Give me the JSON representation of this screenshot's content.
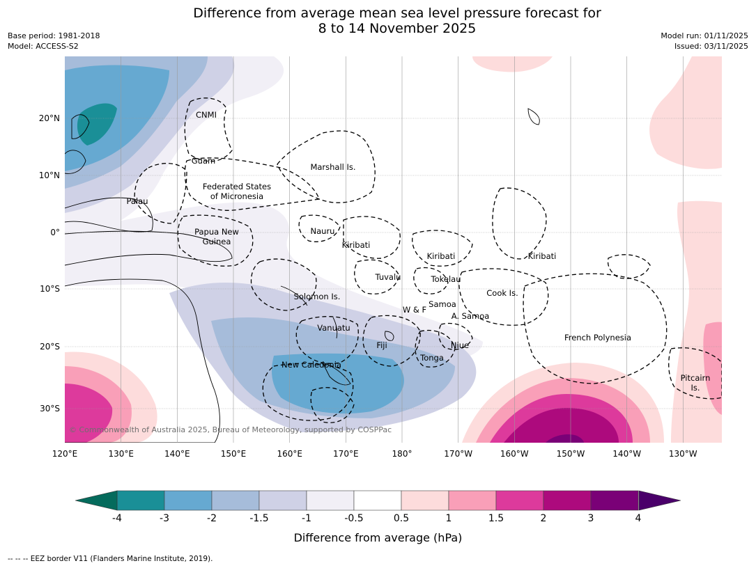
{
  "title_line1": "Difference from average mean sea level pressure forecast for",
  "title_line2": "8 to 14 November 2025",
  "meta_left": {
    "base_period": "Base period: 1981-2018",
    "model": "Model: ACCESS-S2"
  },
  "meta_right": {
    "model_run": "Model run: 01/11/2025",
    "issued": "Issued: 03/11/2025"
  },
  "map": {
    "copyright": "© Commonwealth of Australia 2025, Bureau of Meteorology, supported by COSPPac",
    "lon_ticks": [
      "120°E",
      "130°E",
      "140°E",
      "150°E",
      "160°E",
      "170°E",
      "180°",
      "170°W",
      "160°W",
      "150°W",
      "140°W",
      "130°W"
    ],
    "lat_ticks": [
      "20°N",
      "10°N",
      "0°",
      "10°S",
      "20°S",
      "30°S"
    ],
    "regions": [
      {
        "lines": [
          "CNMI"
        ]
      },
      {
        "lines": [
          "Guam"
        ]
      },
      {
        "lines": [
          "Marshall Is."
        ]
      },
      {
        "lines": [
          "Federated States",
          "of Micronesia"
        ]
      },
      {
        "lines": [
          "Palau"
        ]
      },
      {
        "lines": [
          "Nauru"
        ]
      },
      {
        "lines": [
          "Papua New",
          "Guinea"
        ]
      },
      {
        "lines": [
          "Kiribati"
        ]
      },
      {
        "lines": [
          "Kiribati"
        ]
      },
      {
        "lines": [
          "Kiribati"
        ]
      },
      {
        "lines": [
          "Tuvalu"
        ]
      },
      {
        "lines": [
          "Tokelau"
        ]
      },
      {
        "lines": [
          "Cook Is."
        ]
      },
      {
        "lines": [
          "Solomon Is."
        ]
      },
      {
        "lines": [
          "W & F"
        ]
      },
      {
        "lines": [
          "Samoa"
        ]
      },
      {
        "lines": [
          "A. Samoa"
        ]
      },
      {
        "lines": [
          "Vanuatu"
        ]
      },
      {
        "lines": [
          "Fiji"
        ]
      },
      {
        "lines": [
          "Niue"
        ]
      },
      {
        "lines": [
          "French Polynesia"
        ]
      },
      {
        "lines": [
          "Tonga"
        ]
      },
      {
        "lines": [
          "New Caledonia"
        ]
      },
      {
        "lines": [
          "Pitcairn",
          "Is."
        ]
      }
    ]
  },
  "colorbar": {
    "ticks": [
      "-4",
      "-3",
      "-2",
      "-1.5",
      "-1",
      "-0.5",
      "0.5",
      "1",
      "1.5",
      "2",
      "3",
      "4"
    ],
    "colors": [
      "#1a8f97",
      "#66a9d1",
      "#a6bcda",
      "#cfd1e6",
      "#f1eff6",
      "#ffffff",
      "#fddcdc",
      "#f99fb8",
      "#dd3a9c",
      "#ad0a7d",
      "#7a0177"
    ],
    "under_color": "#056b5c",
    "over_color": "#4a006a",
    "label": "Difference from average (hPa)"
  },
  "footer": "--  --  -- EEZ border V11 (Flanders Marine Institute, 2019)."
}
